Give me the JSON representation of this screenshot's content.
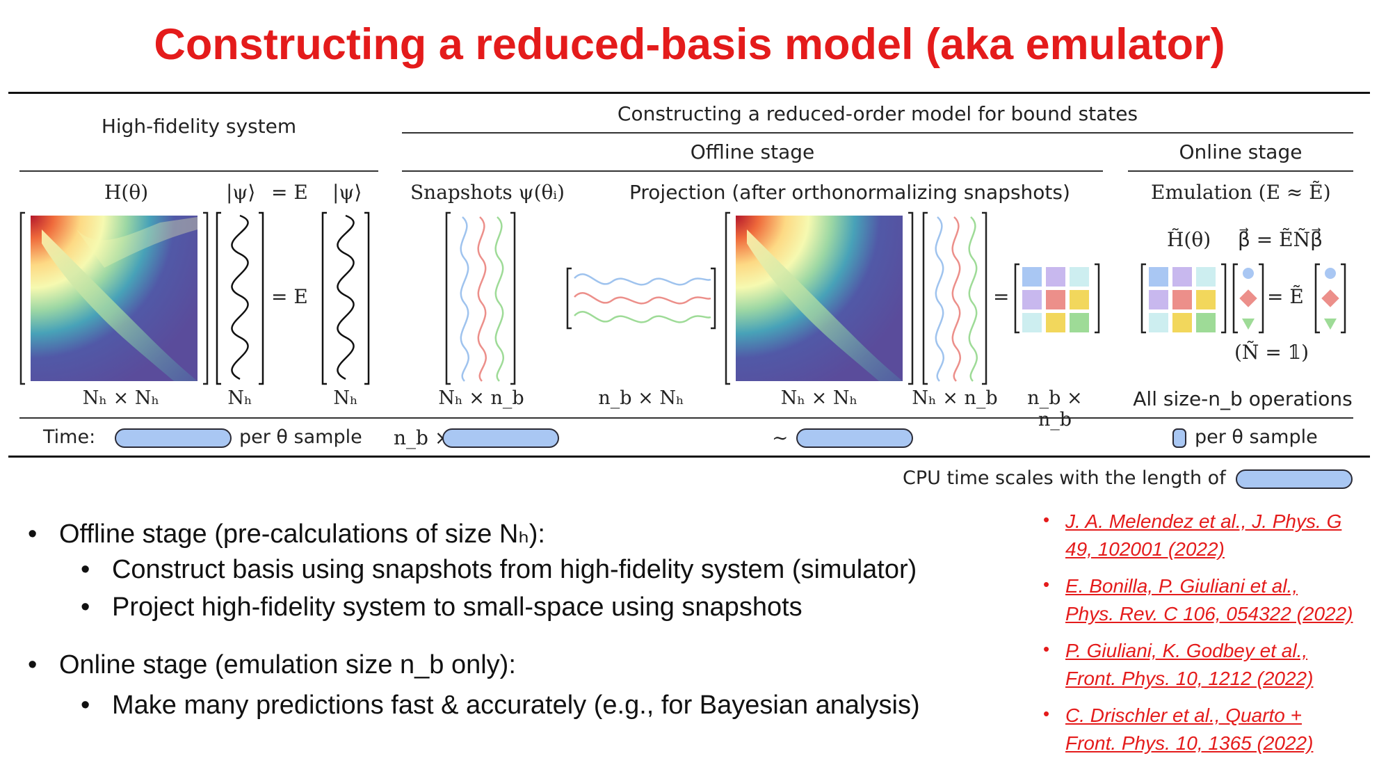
{
  "title": "Constructing a reduced-basis model (aka emulator)",
  "diagram": {
    "high_fidelity_header": "High-fidelity system",
    "rom_header": "Constructing a reduced-order model for bound states",
    "offline_header": "Offline stage",
    "online_header": "Online stage",
    "eq_H": "H(θ)",
    "eq_psi1": "|ψ⟩",
    "eq_eqE": "= E",
    "eq_psi2": "|ψ⟩",
    "snapshots": "Snapshots ψ(θᵢ)",
    "projection": "Projection (after orthonormalizing snapshots)",
    "emulation": "Emulation (E ≈ Ẽ)",
    "online_H": "H̃(θ)",
    "online_beta": "β⃗  = ẼÑβ⃗",
    "eq_mid_1": "= E",
    "eq_mid_2": "=",
    "eq_mid_3": "= Ẽ",
    "norm_note": "(Ñ = 𝟙)",
    "dim_1": "Nₕ × Nₕ",
    "dim_2": "Nₕ",
    "dim_3": "Nₕ",
    "dim_4": "Nₕ × n_b",
    "dim_5": "n_b × Nₕ",
    "dim_6": "Nₕ × Nₕ",
    "dim_7": "Nₕ × n_b",
    "dim_8": "n_b × n_b",
    "dim_9": "All size-n_b operations",
    "time_label": "Time:",
    "per_sample_1": "per θ sample",
    "nb_times": "n_b ×",
    "tilde": "∼",
    "per_sample_2": "per θ sample",
    "cpu_note": "CPU time scales with the length of"
  },
  "bullets": [
    {
      "text": "Offline stage (pre-calculations of size Nₕ):",
      "level": 1
    },
    {
      "text": "Construct basis using snapshots from high-fidelity system (simulator)",
      "level": 2
    },
    {
      "text": "Project high-fidelity system to small-space using snapshots",
      "level": 2
    },
    {
      "text": "Online stage (emulation size n_b only):",
      "level": 1
    },
    {
      "text": "Make many predictions fast & accurately (e.g., for Bayesian analysis)",
      "level": 2
    }
  ],
  "references": [
    {
      "line1": "J. A. Melendez et al., J. Phys. G",
      "line2": "49, 102001 (2022)"
    },
    {
      "line1": "E. Bonilla, P. Giuliani et al.,",
      "line2": "Phys. Rev. C 106, 054322 (2022)"
    },
    {
      "line1": "P. Giuliani, K. Godbey et al.,",
      "line2": "Front. Phys. 10, 1212 (2022)"
    },
    {
      "line1": "C. Drischler et al., Quarto +",
      "line2": "Front. Phys. 10, 1365 (2022)"
    }
  ],
  "colors": {
    "title": "#e41b1b",
    "pill": "#a9c7f3",
    "ref": "#e41b1b"
  }
}
